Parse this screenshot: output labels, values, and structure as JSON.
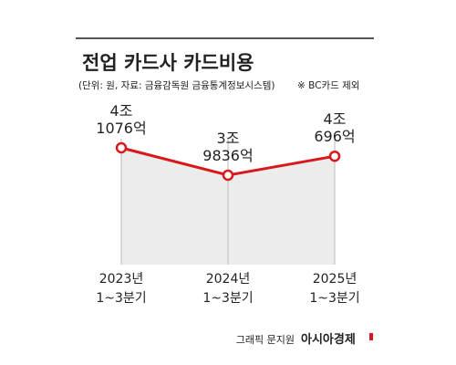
{
  "chart_data": {
    "type": "line",
    "title": "전업 카드사 카드비용",
    "subtitle": "(단위: 원, 자료: 금융감독원 금융통계정보시스템)",
    "note": "※ BC카드 제외",
    "credit": "그래픽 문지원",
    "brand": "아시아경제",
    "categories": [
      [
        "2023년",
        "1~3분기"
      ],
      [
        "2024년",
        "1~3분기"
      ],
      [
        "2025년",
        "1~3분기"
      ]
    ],
    "values": [
      4107600000000,
      3983600000000,
      4069600000000
    ],
    "value_labels": [
      [
        "4조",
        "1076억"
      ],
      [
        "3조",
        "9836억"
      ],
      [
        "4조",
        "696억"
      ]
    ],
    "color": "#d7191c",
    "fill": "#ececec"
  }
}
